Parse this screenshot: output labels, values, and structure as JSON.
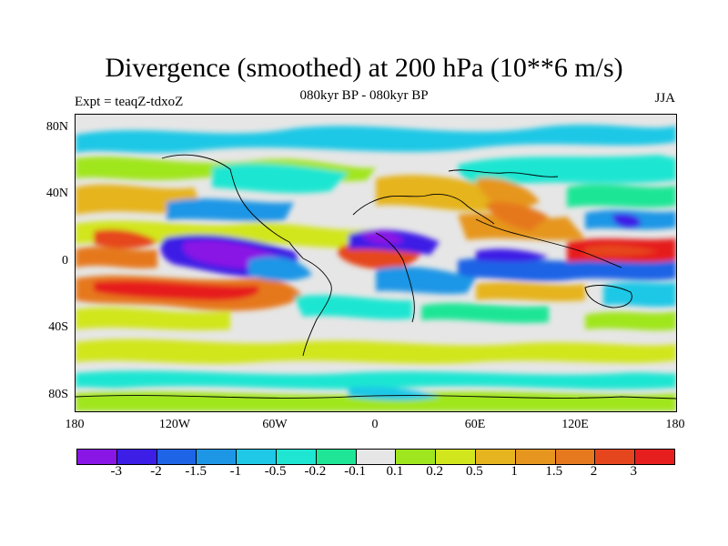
{
  "title": "Divergence (smoothed) at 200 hPa (10**6 m/s)",
  "subtitle_left": "Expt = teaqZ-tdxoZ",
  "subtitle_center": "080kyr BP - 080kyr BP",
  "subtitle_right": "JJA",
  "lat_labels": [
    "80N",
    "40N",
    "0",
    "40S",
    "80S"
  ],
  "lon_labels": [
    "180",
    "120W",
    "60W",
    "0",
    "60E",
    "120E",
    "180"
  ],
  "colorbar": {
    "colors": [
      "#8a16e6",
      "#3c1ee6",
      "#1e64e6",
      "#1e96e6",
      "#1ec8e6",
      "#1ee6d2",
      "#1ee696",
      "#e6e6e6",
      "#a0e61e",
      "#d2e61e",
      "#e6b41e",
      "#e6961e",
      "#e6781e",
      "#e6461e",
      "#e61e1e"
    ],
    "labels": [
      "-3",
      "-2",
      "-1.5",
      "-1",
      "-0.5",
      "-0.2",
      "-0.1",
      "0.1",
      "0.2",
      "0.5",
      "1",
      "1.5",
      "2",
      "3"
    ]
  }
}
